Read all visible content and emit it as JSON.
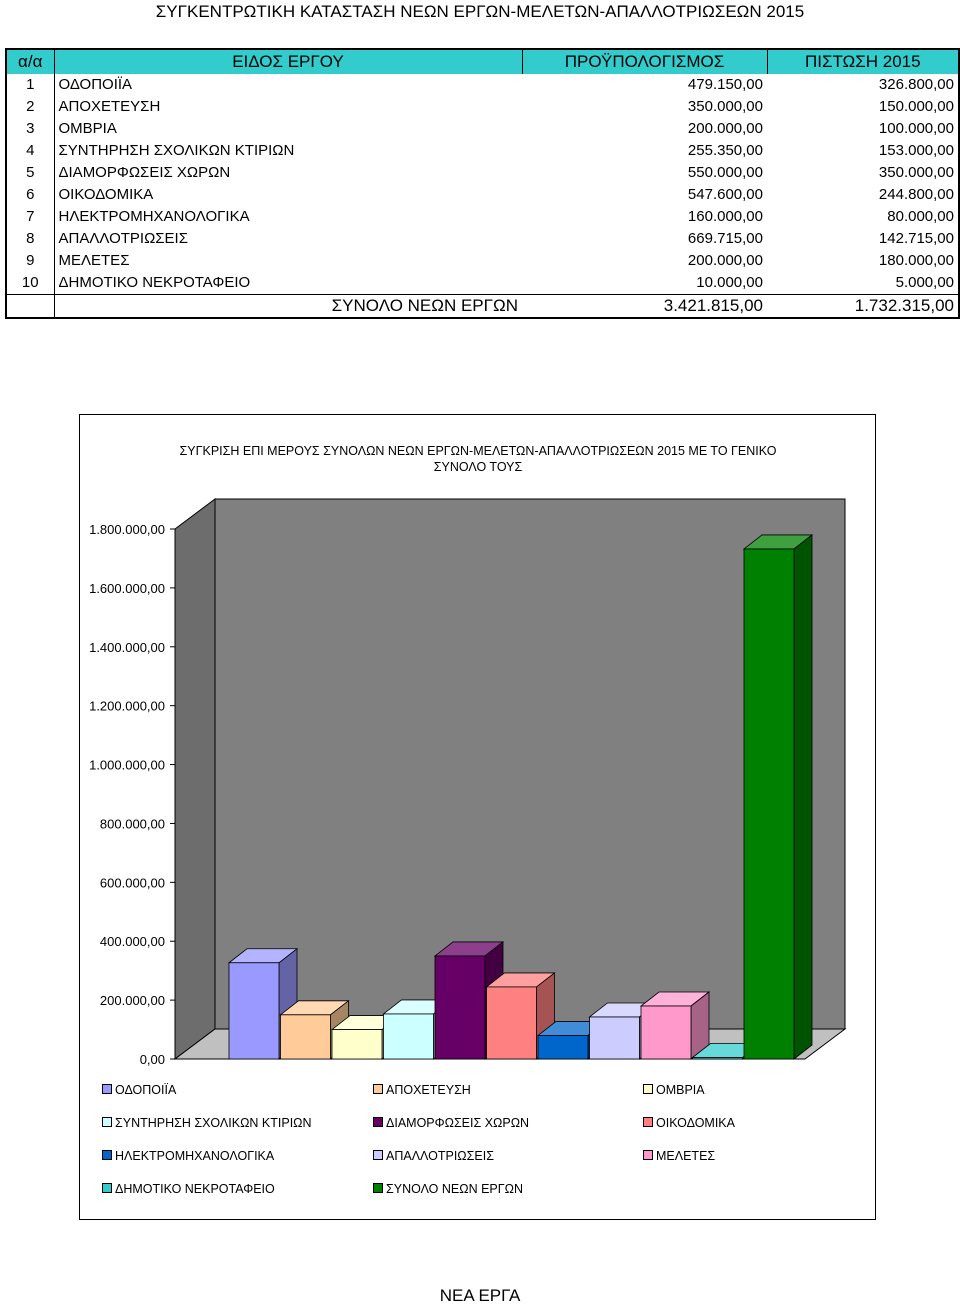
{
  "title": "ΣΥΓΚΕΝΤΡΩΤΙΚΗ ΚΑΤΑΣΤΑΣΗ ΝΕΩΝ ΕΡΓΩΝ-ΜΕΛΕΤΩΝ-ΑΠΑΛΛΟΤΡΙΩΣΕΩΝ 2015",
  "table": {
    "headers": [
      "α/α",
      "ΕΙΔΟΣ ΕΡΓΟΥ",
      "ΠΡΟΫΠΟΛΟΓΙΣΜΟΣ",
      "ΠΙΣΤΩΣΗ 2015"
    ],
    "rows": [
      {
        "idx": "1",
        "name": "ΟΔΟΠΟΙΪΑ",
        "budget": "479.150,00",
        "credit": "326.800,00"
      },
      {
        "idx": "2",
        "name": "ΑΠΟΧΕΤΕΥΣΗ",
        "budget": "350.000,00",
        "credit": "150.000,00"
      },
      {
        "idx": "3",
        "name": "ΟΜΒΡΙΑ",
        "budget": "200.000,00",
        "credit": "100.000,00"
      },
      {
        "idx": "4",
        "name": "ΣΥΝΤΗΡΗΣΗ ΣΧΟΛΙΚΩΝ ΚΤΙΡΙΩΝ",
        "budget": "255.350,00",
        "credit": "153.000,00"
      },
      {
        "idx": "5",
        "name": "ΔΙΑΜΟΡΦΩΣΕΙΣ ΧΩΡΩΝ",
        "budget": "550.000,00",
        "credit": "350.000,00"
      },
      {
        "idx": "6",
        "name": "ΟΙΚΟΔΟΜΙΚΑ",
        "budget": "547.600,00",
        "credit": "244.800,00"
      },
      {
        "idx": "7",
        "name": "ΗΛΕΚΤΡΟΜΗΧΑΝΟΛΟΓΙΚΑ",
        "budget": "160.000,00",
        "credit": "80.000,00"
      },
      {
        "idx": "8",
        "name": "ΑΠΑΛΛΟΤΡΙΩΣΕΙΣ",
        "budget": "669.715,00",
        "credit": "142.715,00"
      },
      {
        "idx": "9",
        "name": "ΜΕΛΕΤΕΣ",
        "budget": "200.000,00",
        "credit": "180.000,00"
      },
      {
        "idx": "10",
        "name": "ΔΗΜΟΤΙΚΟ ΝΕΚΡΟΤΑΦΕΙΟ",
        "budget": "10.000,00",
        "credit": "5.000,00"
      }
    ],
    "total": {
      "label": "ΣΥΝΟΛΟ ΝΕΩΝ ΕΡΓΩΝ",
      "budget": "3.421.815,00",
      "credit": "1.732.315,00"
    },
    "header_color": "#33cccc"
  },
  "chart_data": {
    "type": "bar",
    "title": "ΣΥΓΚΡΙΣΗ ΕΠΙ ΜΕΡΟΥΣ ΣΥΝΟΛΩΝ ΝΕΩΝ ΕΡΓΩΝ-ΜΕΛΕΤΩΝ-ΑΠΑΛΛΟΤΡΙΩΣΕΩΝ 2015 ΜΕ ΤΟ ΓΕΝΙΚΟ ΣΥΝΟΛΟ ΤΟΥΣ",
    "style": "3d-columns",
    "ylim": [
      0,
      1800000
    ],
    "yticks": [
      "0,00",
      "200.000,00",
      "400.000,00",
      "600.000,00",
      "800.000,00",
      "1.000.000,00",
      "1.200.000,00",
      "1.400.000,00",
      "1.600.000,00",
      "1.800.000,00"
    ],
    "grid": false,
    "legend_position": "bottom",
    "series": [
      {
        "name": "ΟΔΟΠΟΙΪΑ",
        "value": 326800,
        "color": "#9999ff"
      },
      {
        "name": "ΑΠΟΧΕΤΕΥΣΗ",
        "value": 150000,
        "color": "#ffcc99"
      },
      {
        "name": "ΟΜΒΡΙΑ",
        "value": 100000,
        "color": "#ffffcc"
      },
      {
        "name": "ΣΥΝΤΗΡΗΣΗ ΣΧΟΛΙΚΩΝ ΚΤΙΡΙΩΝ",
        "value": 153000,
        "color": "#ccffff"
      },
      {
        "name": "ΔΙΑΜΟΡΦΩΣΕΙΣ ΧΩΡΩΝ",
        "value": 350000,
        "color": "#660066"
      },
      {
        "name": "ΟΙΚΟΔΟΜΙΚΑ",
        "value": 244800,
        "color": "#ff8080"
      },
      {
        "name": "ΗΛΕΚΤΡΟΜΗΧΑΝΟΛΟΓΙΚΑ",
        "value": 80000,
        "color": "#0066cc"
      },
      {
        "name": "ΑΠΑΛΛΟΤΡΙΩΣΕΙΣ",
        "value": 142715,
        "color": "#ccccff"
      },
      {
        "name": "ΜΕΛΕΤΕΣ",
        "value": 180000,
        "color": "#ff99cc"
      },
      {
        "name": "ΔΗΜΟΤΙΚΟ ΝΕΚΡΟΤΑΦΕΙΟ",
        "value": 5000,
        "color": "#33cccc"
      },
      {
        "name": "ΣΥΝΟΛΟ ΝΕΩΝ ΕΡΓΩΝ",
        "value": 1732315,
        "color": "#008000"
      }
    ],
    "wall_color": "#808080",
    "floor_color": "#c0c0c0"
  },
  "footer": "ΝΕΑ ΕΡΓΑ"
}
